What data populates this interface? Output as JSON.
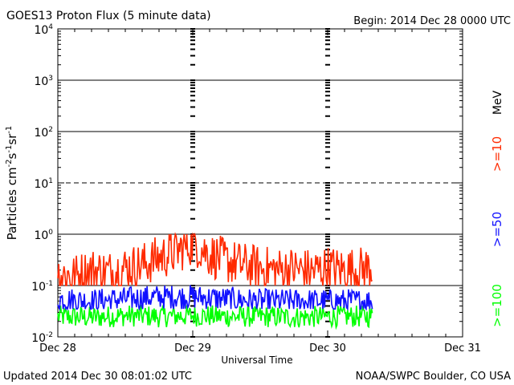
{
  "header": {
    "title": "GOES13 Proton Flux (5 minute data)",
    "begin": "Begin: 2014 Dec 28 0000 UTC"
  },
  "footer": {
    "updated": "Updated 2014 Dec 30 08:01:02 UTC",
    "credit": "NOAA/SWPC Boulder, CO USA"
  },
  "right_labels": {
    "unit": "MeV",
    "ge10": ">=10",
    "ge50": ">=50",
    "ge100": ">=100"
  },
  "colors": {
    "ge10": "#ff2a00",
    "ge50": "#1010ff",
    "ge100": "#00ff00",
    "axis": "#000000",
    "background": "#ffffff"
  },
  "chart_data": {
    "type": "line",
    "title": "GOES13 Proton Flux (5 minute data)",
    "xlabel": "Universal Time",
    "ylabel": "Particles cm^-2 s^-1 sr^-1",
    "yscale": "log",
    "ylim": [
      0.01,
      10000
    ],
    "xlim": [
      "2014-12-28 00:00",
      "2014-12-31 00:00"
    ],
    "x_ticks": [
      "Dec 28",
      "Dec 29",
      "Dec 30",
      "Dec 31"
    ],
    "y_ticks": [
      {
        "base": "10",
        "exp": "4"
      },
      {
        "base": "10",
        "exp": "3"
      },
      {
        "base": "10",
        "exp": "2"
      },
      {
        "base": "10",
        "exp": "1"
      },
      {
        "base": "10",
        "exp": "0"
      },
      {
        "base": "10",
        "exp": "-1"
      },
      {
        "base": "10",
        "exp": "-2"
      }
    ],
    "reference_lines": [
      {
        "y": 1000,
        "style": "solid"
      },
      {
        "y": 100,
        "style": "solid"
      },
      {
        "y": 10,
        "style": "dashed"
      },
      {
        "y": 1,
        "style": "solid"
      },
      {
        "y": 0.1,
        "style": "solid"
      }
    ],
    "day_markers": [
      "2014-12-29 00:00",
      "2014-12-30 00:00"
    ],
    "series": [
      {
        "name": ">=10 MeV",
        "color": "#ff2a00",
        "x": [
          "2014-12-28 00:00",
          "2014-12-28 03:00",
          "2014-12-28 06:00",
          "2014-12-28 09:00",
          "2014-12-28 12:00",
          "2014-12-28 15:00",
          "2014-12-28 18:00",
          "2014-12-28 21:00",
          "2014-12-29 00:00",
          "2014-12-29 03:00",
          "2014-12-29 06:00",
          "2014-12-29 09:00",
          "2014-12-29 12:00",
          "2014-12-29 15:00",
          "2014-12-29 18:00",
          "2014-12-29 21:00",
          "2014-12-30 00:00",
          "2014-12-30 03:00",
          "2014-12-30 06:00",
          "2014-12-30 08:00"
        ],
        "y": [
          0.17,
          0.15,
          0.2,
          0.18,
          0.22,
          0.25,
          0.35,
          0.45,
          0.7,
          0.4,
          0.3,
          0.25,
          0.22,
          0.2,
          0.21,
          0.19,
          0.22,
          0.2,
          0.21,
          0.22
        ],
        "band": [
          0.1,
          1.0
        ]
      },
      {
        "name": ">=50 MeV",
        "color": "#1010ff",
        "x": [
          "2014-12-28 00:00",
          "2014-12-28 06:00",
          "2014-12-28 12:00",
          "2014-12-28 18:00",
          "2014-12-29 00:00",
          "2014-12-29 06:00",
          "2014-12-29 12:00",
          "2014-12-29 18:00",
          "2014-12-30 00:00",
          "2014-12-30 06:00",
          "2014-12-30 08:00"
        ],
        "y": [
          0.055,
          0.05,
          0.055,
          0.06,
          0.06,
          0.055,
          0.05,
          0.05,
          0.05,
          0.05,
          0.05
        ],
        "band": [
          0.035,
          0.12
        ]
      },
      {
        "name": ">=100 MeV",
        "color": "#00ff00",
        "x": [
          "2014-12-28 00:00",
          "2014-12-28 06:00",
          "2014-12-28 12:00",
          "2014-12-28 18:00",
          "2014-12-29 00:00",
          "2014-12-29 06:00",
          "2014-12-29 12:00",
          "2014-12-29 18:00",
          "2014-12-30 00:00",
          "2014-12-30 06:00",
          "2014-12-30 08:00"
        ],
        "y": [
          0.025,
          0.024,
          0.026,
          0.025,
          0.026,
          0.025,
          0.025,
          0.024,
          0.025,
          0.025,
          0.025
        ],
        "band": [
          0.015,
          0.045
        ]
      }
    ]
  }
}
